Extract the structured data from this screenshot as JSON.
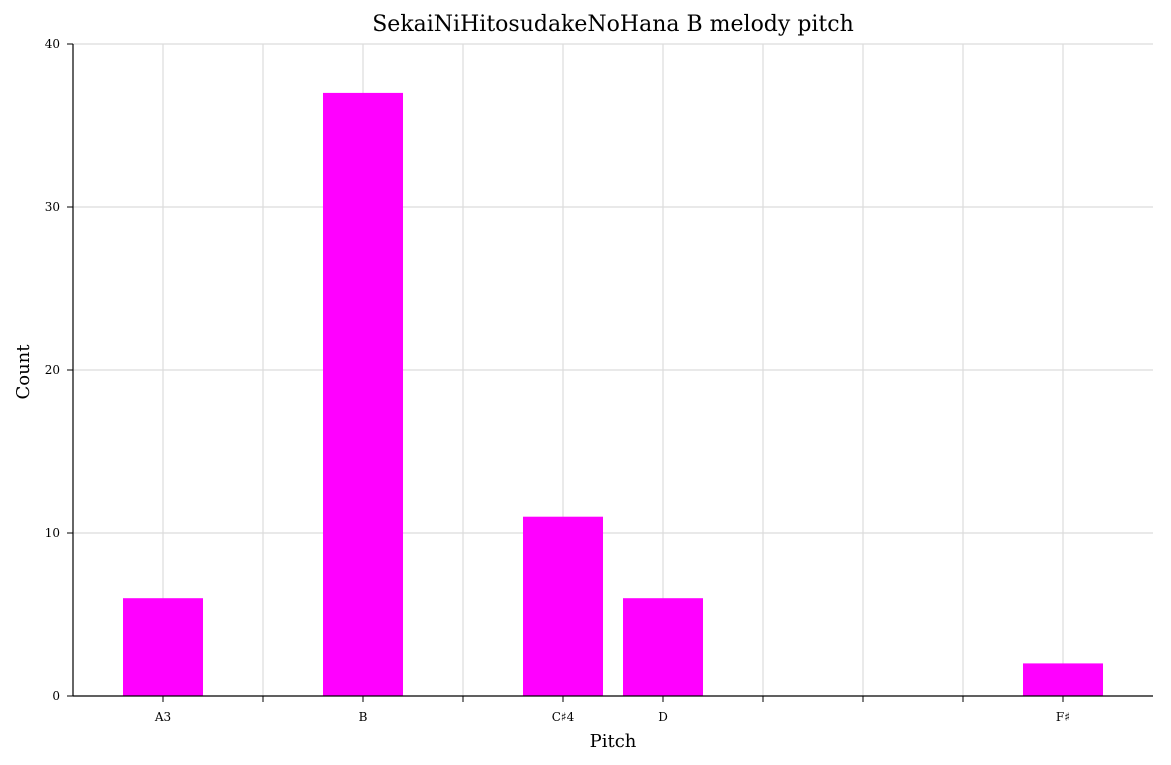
{
  "chart_data": {
    "type": "bar",
    "title": "SekaiNiHitosudakeNoHana B melody pitch",
    "xlabel": "Pitch",
    "ylabel": "Count",
    "ylim": [
      0,
      40
    ],
    "yticks": [
      0,
      10,
      20,
      30,
      40
    ],
    "xlim": [
      -0.9,
      9.9
    ],
    "xticks": [
      {
        "pos": 0,
        "label": "A3"
      },
      {
        "pos": 1,
        "label": ""
      },
      {
        "pos": 2,
        "label": "B"
      },
      {
        "pos": 3,
        "label": ""
      },
      {
        "pos": 4,
        "label": "C♯4"
      },
      {
        "pos": 5,
        "label": "D"
      },
      {
        "pos": 6,
        "label": ""
      },
      {
        "pos": 7,
        "label": ""
      },
      {
        "pos": 8,
        "label": ""
      },
      {
        "pos": 9,
        "label": "F♯"
      }
    ],
    "categories": [
      "A3",
      "B",
      "C♯4",
      "D",
      "F♯"
    ],
    "positions": [
      0,
      2,
      4,
      5,
      9
    ],
    "values": [
      6,
      37,
      11,
      6,
      2
    ],
    "bar_width": 0.8,
    "bar_color": "#ff00ff",
    "grid": true
  }
}
